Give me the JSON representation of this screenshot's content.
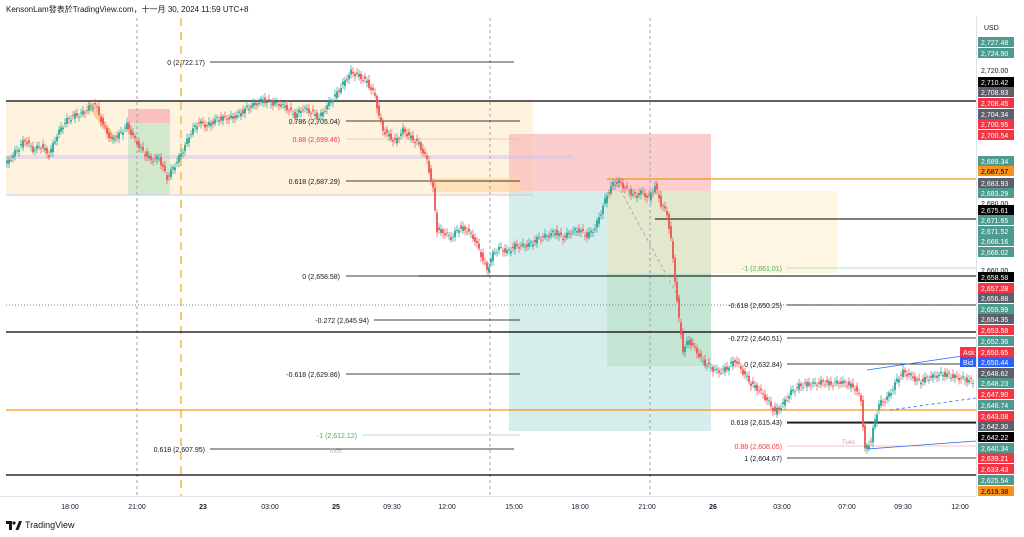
{
  "header": {
    "title": "KensonLam發表於TradingView.com，十一月 30, 2024 11:59 UTC+8"
  },
  "footer": {
    "brand": "TradingView"
  },
  "chart_data": {
    "type": "candlestick",
    "currency": "USD",
    "y_range": [
      2615,
      2730
    ],
    "y_ticks": [
      "2,727.48",
      "2,724.90",
      "2,720.00",
      "2,710.42",
      "2,708.83",
      "2,708.45",
      "2,704.34",
      "2,700.95",
      "2,700.54",
      "2,689.34",
      "2,687.57",
      "2,683.93",
      "2,683.29",
      "2,680.00",
      "2,675.61",
      "2,671.65",
      "2,671.52",
      "2,666.16",
      "2,666.02",
      "2,660.00",
      "2,658.58",
      "2,657.28",
      "2,656.88",
      "2,655.99",
      "2,654.35",
      "2,653.58",
      "2,652.36",
      "2,650.65",
      "2,650.44",
      "2,648.62",
      "2,648.23",
      "2,647.90",
      "2,646.74",
      "2,643.08",
      "2,642.30",
      "2,642.22",
      "2,640.34",
      "2,639.21",
      "2,633.43",
      "2,625.54",
      "2,619.38"
    ],
    "price_labels": [
      {
        "value": 2727.48,
        "text": "2,727.48",
        "bg": "#4e9a8e",
        "fg": "#ffffff"
      },
      {
        "value": 2724.9,
        "text": "2,724.90",
        "bg": "#4e9a8e",
        "fg": "#ffffff"
      },
      {
        "value": 2720.0,
        "text": "2,720.00",
        "bg": "",
        "fg": "#131722"
      },
      {
        "value": 2710.42,
        "text": "2,710.42",
        "bg": "#000000",
        "fg": "#ffffff"
      },
      {
        "value": 2708.83,
        "text": "2,708.83",
        "bg": "#5d606b",
        "fg": "#ffffff"
      },
      {
        "value": 2708.45,
        "text": "2,708.45",
        "bg": "#f23645",
        "fg": "#ffffff"
      },
      {
        "value": 2704.34,
        "text": "2,704.34",
        "bg": "#5d606b",
        "fg": "#ffffff"
      },
      {
        "value": 2700.95,
        "text": "2,700.95",
        "bg": "#f23645",
        "fg": "#ffffff"
      },
      {
        "value": 2700.54,
        "text": "2,700.54",
        "bg": "#f23645",
        "fg": "#ffffff"
      },
      {
        "value": 2689.34,
        "text": "2,689.34",
        "bg": "#4e9a8e",
        "fg": "#ffffff"
      },
      {
        "value": 2687.57,
        "text": "2,687.57",
        "bg": "#f7931a",
        "fg": "#000000"
      },
      {
        "value": 2683.93,
        "text": "2,683.93",
        "bg": "#5d606b",
        "fg": "#ffffff"
      },
      {
        "value": 2683.29,
        "text": "2,683.29",
        "bg": "#4e9a8e",
        "fg": "#ffffff"
      },
      {
        "value": 2680.0,
        "text": "2,680.00",
        "bg": "",
        "fg": "#131722"
      },
      {
        "value": 2675.61,
        "text": "2,675.61",
        "bg": "#000000",
        "fg": "#ffffff"
      },
      {
        "value": 2671.65,
        "text": "2,671.65",
        "bg": "#4e9a8e",
        "fg": "#ffffff"
      },
      {
        "value": 2671.52,
        "text": "2,671.52",
        "bg": "#4e9a8e",
        "fg": "#ffffff"
      },
      {
        "value": 2666.16,
        "text": "2,666.16",
        "bg": "#4e9a8e",
        "fg": "#ffffff"
      },
      {
        "value": 2666.02,
        "text": "2,666.02",
        "bg": "#4e9a8e",
        "fg": "#ffffff"
      },
      {
        "value": 2660.0,
        "text": "2,660.00",
        "bg": "",
        "fg": "#131722"
      },
      {
        "value": 2658.58,
        "text": "2,658.58",
        "bg": "#000000",
        "fg": "#ffffff"
      },
      {
        "value": 2657.28,
        "text": "2,657.28",
        "bg": "#f23645",
        "fg": "#ffffff"
      },
      {
        "value": 2656.88,
        "text": "2,656.88",
        "bg": "#5d606b",
        "fg": "#ffffff"
      },
      {
        "value": 2655.99,
        "text": "2,655.99",
        "bg": "#4e9a8e",
        "fg": "#ffffff"
      },
      {
        "value": 2654.35,
        "text": "2,654.35",
        "bg": "#5d606b",
        "fg": "#ffffff"
      },
      {
        "value": 2653.58,
        "text": "2,653.58",
        "bg": "#f23645",
        "fg": "#ffffff"
      },
      {
        "value": 2652.36,
        "text": "2,652.36",
        "bg": "#4e9a8e",
        "fg": "#ffffff"
      },
      {
        "value": 2650.65,
        "text": "2,650.65",
        "bg": "#f23645",
        "fg": "#ffffff"
      },
      {
        "value": 2650.44,
        "text": "2,650.44",
        "bg": "#2962ff",
        "fg": "#ffffff"
      },
      {
        "value": 2648.62,
        "text": "2,648.62",
        "bg": "#5d606b",
        "fg": "#ffffff"
      },
      {
        "value": 2648.23,
        "text": "2,648.23",
        "bg": "#4e9a8e",
        "fg": "#ffffff"
      },
      {
        "value": 2647.9,
        "text": "2,647.90",
        "bg": "#f23645",
        "fg": "#ffffff"
      },
      {
        "value": 2646.74,
        "text": "2,646.74",
        "bg": "#4e9a8e",
        "fg": "#ffffff"
      },
      {
        "value": 2643.08,
        "text": "2,643.08",
        "bg": "#f23645",
        "fg": "#ffffff"
      },
      {
        "value": 2642.3,
        "text": "2,642.30",
        "bg": "#5d606b",
        "fg": "#ffffff"
      },
      {
        "value": 2642.22,
        "text": "2,642.22",
        "bg": "#000000",
        "fg": "#ffffff"
      },
      {
        "value": 2640.34,
        "text": "2,640.34",
        "bg": "#4e9a8e",
        "fg": "#ffffff"
      },
      {
        "value": 2639.21,
        "text": "2,639.21",
        "bg": "#f23645",
        "fg": "#ffffff"
      },
      {
        "value": 2633.43,
        "text": "2,633.43",
        "bg": "#f23645",
        "fg": "#ffffff"
      },
      {
        "value": 2625.54,
        "text": "2,625.54",
        "bg": "#4e9a8e",
        "fg": "#ffffff"
      },
      {
        "value": 2619.38,
        "text": "2,619.38",
        "bg": "#f7931a",
        "fg": "#000000"
      }
    ],
    "ask_label": "Ask",
    "bid_label": "Bid",
    "x_ticks": [
      "18:00",
      "21:00",
      "23",
      "03:00",
      "25",
      "09:30",
      "12:00",
      "15:00",
      "18:00",
      "21:00",
      "26",
      "03:00",
      "07:00",
      "09:30",
      "12:00"
    ],
    "fib_labels": [
      {
        "text": "0 (2,722.17)",
        "value": 2722.17,
        "color": "#131722"
      },
      {
        "text": "0.786 (2,705.04)",
        "value": 2705.04,
        "color": "#131722"
      },
      {
        "text": "0.88 (2,699.46)",
        "value": 2699.46,
        "color": "#f23645"
      },
      {
        "text": "0.618 (2,687.29)",
        "value": 2687.29,
        "color": "#131722"
      },
      {
        "text": "0 (2,658.58)",
        "value": 2658.58,
        "color": "#131722"
      },
      {
        "text": "-0.272 (2,645.94)",
        "value": 2645.94,
        "color": "#131722"
      },
      {
        "text": "-0.618 (2,629.86)",
        "value": 2629.86,
        "color": "#131722"
      },
      {
        "text": "-1 (2,612.12)",
        "value": 2612.12,
        "color": "#4caf50"
      },
      {
        "text": "0.618 (2,607.95)",
        "value": 2607.95,
        "color": "#131722"
      },
      {
        "text": "-1 (2,661.01)",
        "value": 2661.01,
        "color": "#4caf50"
      },
      {
        "text": "-0.618 (2,650.25)",
        "value": 2650.25,
        "color": "#131722"
      },
      {
        "text": "-0.272 (2,640.51)",
        "value": 2640.51,
        "color": "#131722"
      },
      {
        "text": "0 (2,632.84)",
        "value": 2632.84,
        "color": "#131722"
      },
      {
        "text": "0.618 (2,615.43)",
        "value": 2615.43,
        "color": "#131722"
      },
      {
        "text": "0.88 (2,608.05)",
        "value": 2608.05,
        "color": "#f23645"
      },
      {
        "text": "1 (2,604.67)",
        "value": 2604.67,
        "color": "#131722"
      }
    ],
    "small_labels": [
      "Mon",
      "Tues"
    ],
    "colors": {
      "up": "#26a69a",
      "down": "#ef5350",
      "hline": "#000000",
      "orange": "#f7931a"
    }
  }
}
